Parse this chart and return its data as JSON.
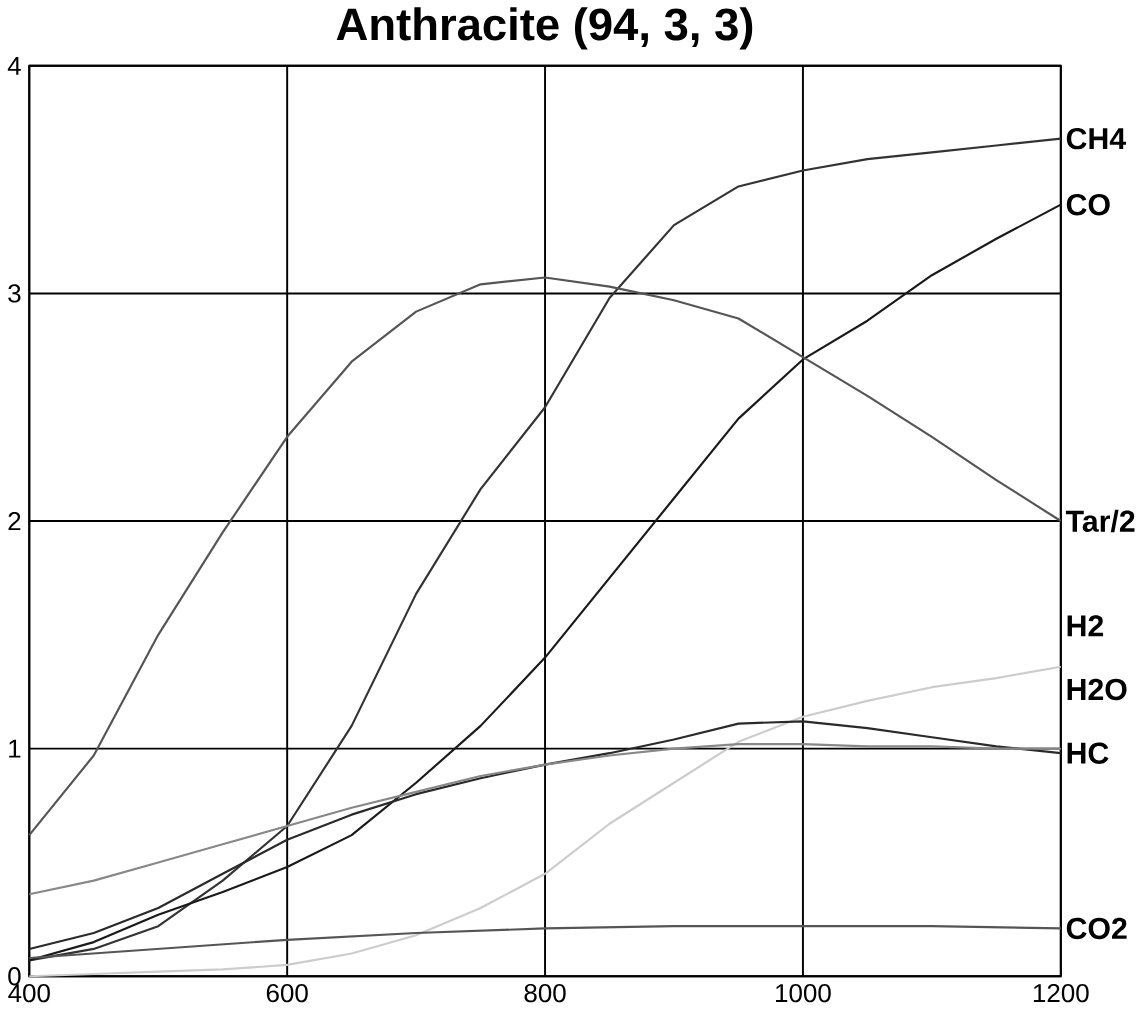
{
  "chart_data": {
    "type": "line",
    "title": "Anthracite (94, 3, 3)",
    "x": [
      400,
      450,
      500,
      550,
      600,
      650,
      700,
      750,
      800,
      850,
      900,
      950,
      1000,
      1050,
      1100,
      1150,
      1200
    ],
    "xlim": [
      400,
      1200
    ],
    "xticks": [
      400,
      600,
      800,
      1000,
      1200
    ],
    "ylim": [
      0,
      4
    ],
    "yticks": [
      0,
      1,
      2,
      3,
      4
    ],
    "grid": true,
    "legend": false,
    "marker": "none",
    "line_style": "solid",
    "series": [
      {
        "name": "CH4",
        "color": "#333333",
        "values": [
          0.07,
          0.12,
          0.22,
          0.42,
          0.66,
          1.1,
          1.68,
          2.14,
          2.5,
          2.98,
          3.3,
          3.47,
          3.54,
          3.59,
          3.62,
          3.65,
          3.68
        ]
      },
      {
        "name": "CO",
        "color": "#1a1a1a",
        "values": [
          0.07,
          0.15,
          0.27,
          0.37,
          0.48,
          0.62,
          0.85,
          1.1,
          1.4,
          1.75,
          2.1,
          2.45,
          2.71,
          2.88,
          3.08,
          3.24,
          3.39
        ]
      },
      {
        "name": "Tar/2",
        "color": "#555555",
        "values": [
          0.62,
          0.97,
          1.5,
          1.95,
          2.37,
          2.7,
          2.92,
          3.04,
          3.07,
          3.03,
          2.97,
          2.89,
          2.72,
          2.55,
          2.37,
          2.18,
          2.0
        ]
      },
      {
        "name": "H2",
        "color": "#cccccc",
        "values": [
          0.0,
          0.01,
          0.02,
          0.03,
          0.05,
          0.1,
          0.18,
          0.3,
          0.45,
          0.67,
          0.85,
          1.03,
          1.14,
          1.21,
          1.27,
          1.31,
          1.36
        ]
      },
      {
        "name": "HC",
        "color": "#2a2a2a",
        "values": [
          0.12,
          0.19,
          0.3,
          0.45,
          0.6,
          0.71,
          0.8,
          0.87,
          0.93,
          0.98,
          1.04,
          1.11,
          1.12,
          1.09,
          1.05,
          1.01,
          0.98
        ]
      },
      {
        "name": "H2O",
        "color": "#888888",
        "values": [
          0.36,
          0.42,
          0.5,
          0.58,
          0.66,
          0.74,
          0.81,
          0.88,
          0.93,
          0.97,
          1.0,
          1.02,
          1.02,
          1.01,
          1.01,
          1.0,
          1.0
        ]
      },
      {
        "name": "CO2",
        "color": "#555555",
        "x": [
          400,
          500,
          600,
          700,
          800,
          900,
          1000,
          1100,
          1200
        ],
        "values": [
          0.08,
          0.12,
          0.16,
          0.19,
          0.21,
          0.22,
          0.22,
          0.22,
          0.21
        ]
      }
    ]
  }
}
